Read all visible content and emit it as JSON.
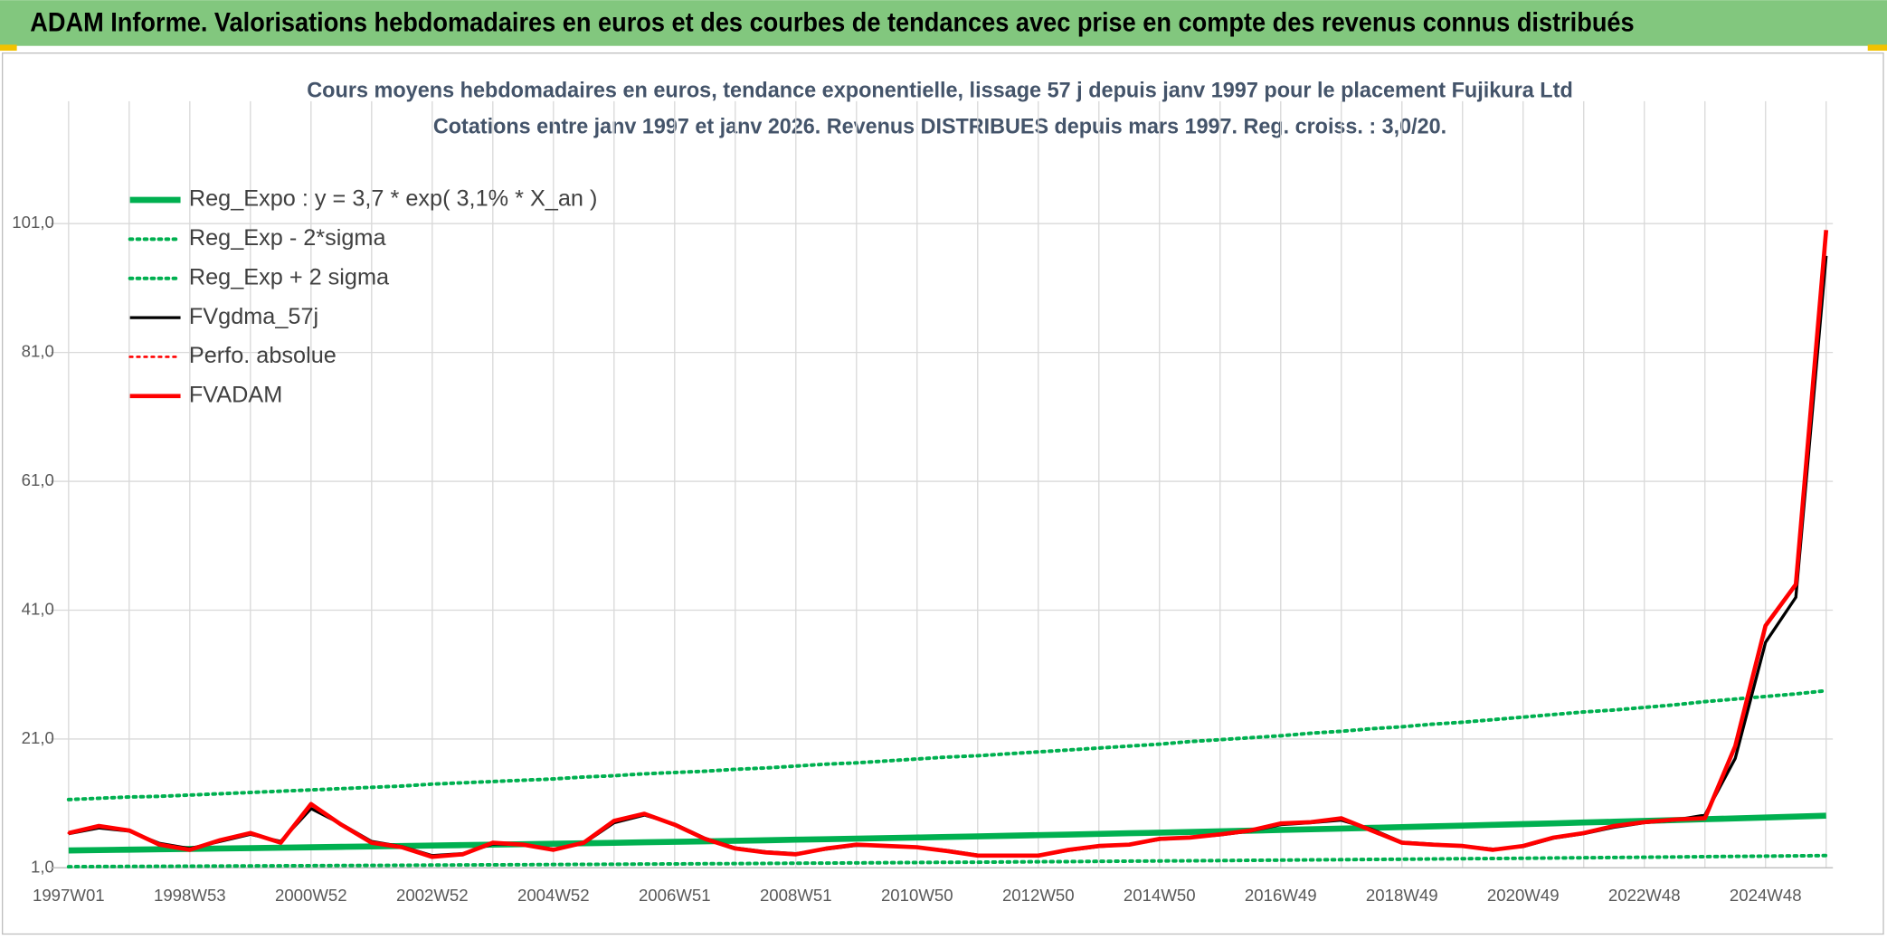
{
  "header": {
    "title": "ADAM Informe. Valorisations hebdomadaires en euros et des courbes de tendances avec prise en compte des revenus connus distribués"
  },
  "chart_data": {
    "type": "line",
    "title": "Cours moyens hebdomadaires en euros, tendance exponentielle, lissage 57 j depuis janv 1997 pour le placement Fujikura Ltd",
    "subtitle": "Cotations entre janv 1997 et janv 2026. Revenus DISTRIBUES depuis mars 1997. Reg. croiss. : 3,0/20.",
    "categories": [
      "1997W01",
      null,
      null,
      null,
      "1998W53",
      null,
      null,
      null,
      "2000W52",
      null,
      null,
      null,
      "2002W52",
      null,
      null,
      null,
      "2004W52",
      null,
      null,
      null,
      "2006W51",
      null,
      null,
      null,
      "2008W51",
      null,
      null,
      null,
      "2010W50",
      null,
      null,
      null,
      "2012W50",
      null,
      null,
      null,
      "2014W50",
      null,
      null,
      null,
      "2016W49",
      null,
      null,
      null,
      "2018W49",
      null,
      null,
      null,
      "2020W49",
      null,
      null,
      null,
      "2022W48",
      null,
      null,
      null,
      "2024W48",
      null,
      null
    ],
    "ylim": [
      1,
      120
    ],
    "yticks": [
      {
        "value": 1,
        "label": "1,0"
      },
      {
        "value": 21,
        "label": "21,0"
      },
      {
        "value": 41,
        "label": "41,0"
      },
      {
        "value": 61,
        "label": "61,0"
      },
      {
        "value": 81,
        "label": "81,0"
      },
      {
        "value": 101,
        "label": "101,0"
      }
    ],
    "grid": true,
    "legend": "upper left",
    "series": [
      {
        "name": "Reg_Expo : y = 3,7 * exp( 3,1% *  X_an )",
        "color": "#00b050",
        "dash": false,
        "values": [
          3.7,
          3.76,
          3.82,
          3.88,
          3.94,
          4.0,
          4.06,
          4.13,
          4.19,
          4.26,
          4.32,
          4.39,
          4.46,
          4.53,
          4.6,
          4.67,
          4.74,
          4.82,
          4.89,
          4.97,
          5.04,
          5.12,
          5.2,
          5.28,
          5.37,
          5.45,
          5.54,
          5.62,
          5.71,
          5.8,
          5.89,
          5.98,
          6.08,
          6.17,
          6.27,
          6.37,
          6.46,
          6.57,
          6.67,
          6.77,
          6.88,
          6.99,
          7.1,
          7.21,
          7.32,
          7.44,
          7.55,
          7.67,
          7.79,
          7.91,
          8.04,
          8.16,
          8.28,
          8.41,
          8.55,
          8.68,
          8.81,
          8.95,
          9.09
        ]
      },
      {
        "name": "Reg_Exp - 2*sigma",
        "color": "#00b050",
        "dash": true,
        "values": [
          1.18,
          1.2,
          1.22,
          1.24,
          1.26,
          1.28,
          1.3,
          1.32,
          1.34,
          1.36,
          1.38,
          1.4,
          1.43,
          1.45,
          1.47,
          1.49,
          1.52,
          1.54,
          1.56,
          1.59,
          1.61,
          1.64,
          1.66,
          1.69,
          1.72,
          1.74,
          1.77,
          1.8,
          1.83,
          1.86,
          1.88,
          1.91,
          1.95,
          1.97,
          2.01,
          2.04,
          2.07,
          2.1,
          2.13,
          2.17,
          2.2,
          2.24,
          2.27,
          2.31,
          2.34,
          2.38,
          2.42,
          2.45,
          2.49,
          2.53,
          2.57,
          2.61,
          2.65,
          2.69,
          2.74,
          2.78,
          2.82,
          2.86,
          2.91
        ]
      },
      {
        "name": "Reg_Exp + 2 sigma",
        "color": "#00b050",
        "dash": true,
        "values": [
          11.6,
          11.8,
          12.0,
          12.1,
          12.3,
          12.5,
          12.7,
          12.9,
          13.1,
          13.3,
          13.5,
          13.7,
          14.0,
          14.2,
          14.4,
          14.6,
          14.8,
          15.1,
          15.3,
          15.6,
          15.8,
          16.0,
          16.3,
          16.5,
          16.8,
          17.1,
          17.3,
          17.6,
          17.9,
          18.2,
          18.4,
          18.7,
          19.0,
          19.3,
          19.6,
          19.9,
          20.2,
          20.6,
          20.9,
          21.2,
          21.5,
          21.9,
          22.2,
          22.6,
          22.9,
          23.3,
          23.6,
          24.0,
          24.4,
          24.8,
          25.2,
          25.5,
          25.9,
          26.3,
          26.8,
          27.2,
          27.6,
          28.0,
          28.5
        ]
      },
      {
        "name": "FVgdma_57j",
        "color": "#000000",
        "dash": false,
        "values": [
          6.3,
          7.2,
          6.7,
          4.8,
          4.0,
          5.1,
          6.2,
          5.1,
          10.2,
          7.8,
          5.1,
          4.3,
          2.9,
          3.2,
          4.7,
          4.6,
          3.9,
          4.8,
          8.0,
          9.2,
          7.8,
          5.6,
          4.1,
          3.5,
          3.2,
          3.9,
          4.5,
          4.4,
          4.2,
          3.7,
          3.0,
          2.9,
          2.9,
          3.7,
          4.3,
          4.6,
          5.4,
          5.7,
          6.1,
          6.7,
          7.7,
          8.0,
          8.4,
          7.0,
          5.0,
          4.7,
          4.4,
          3.9,
          4.3,
          5.6,
          6.3,
          7.3,
          8.0,
          8.4,
          9.2,
          18.0,
          36.0,
          43.0,
          96.0
        ]
      },
      {
        "name": "Perfo. absolue",
        "color": "#ff0000",
        "dash": true,
        "values": [
          6.4,
          7.5,
          6.8,
          4.6,
          3.8,
          5.3,
          6.4,
          4.9,
          10.9,
          7.7,
          4.9,
          4.2,
          2.7,
          3.1,
          4.9,
          4.6,
          3.8,
          4.9,
          8.3,
          9.4,
          7.7,
          5.5,
          4.0,
          3.4,
          3.1,
          4.0,
          4.6,
          4.4,
          4.2,
          3.6,
          2.9,
          2.9,
          2.9,
          3.8,
          4.4,
          4.6,
          5.5,
          5.7,
          6.2,
          6.8,
          7.9,
          8.1,
          8.7,
          6.8,
          4.9,
          4.6,
          4.4,
          3.8,
          4.4,
          5.7,
          6.4,
          7.5,
          8.1,
          8.5,
          8.7,
          19.9,
          38.6,
          45.0,
          100.0
        ]
      },
      {
        "name": "FVADAM",
        "color": "#ff0000",
        "dash": false,
        "values": [
          6.4,
          7.5,
          6.8,
          4.6,
          3.8,
          5.3,
          6.4,
          4.9,
          10.9,
          7.7,
          4.9,
          4.2,
          2.7,
          3.1,
          4.9,
          4.6,
          3.8,
          4.9,
          8.3,
          9.4,
          7.7,
          5.5,
          4.0,
          3.4,
          3.1,
          4.0,
          4.6,
          4.4,
          4.2,
          3.6,
          2.9,
          2.9,
          2.9,
          3.8,
          4.4,
          4.6,
          5.5,
          5.7,
          6.2,
          6.8,
          7.9,
          8.1,
          8.7,
          6.8,
          4.9,
          4.6,
          4.4,
          3.8,
          4.4,
          5.7,
          6.4,
          7.5,
          8.1,
          8.5,
          8.7,
          19.9,
          38.6,
          45.0,
          100.0
        ]
      }
    ]
  }
}
